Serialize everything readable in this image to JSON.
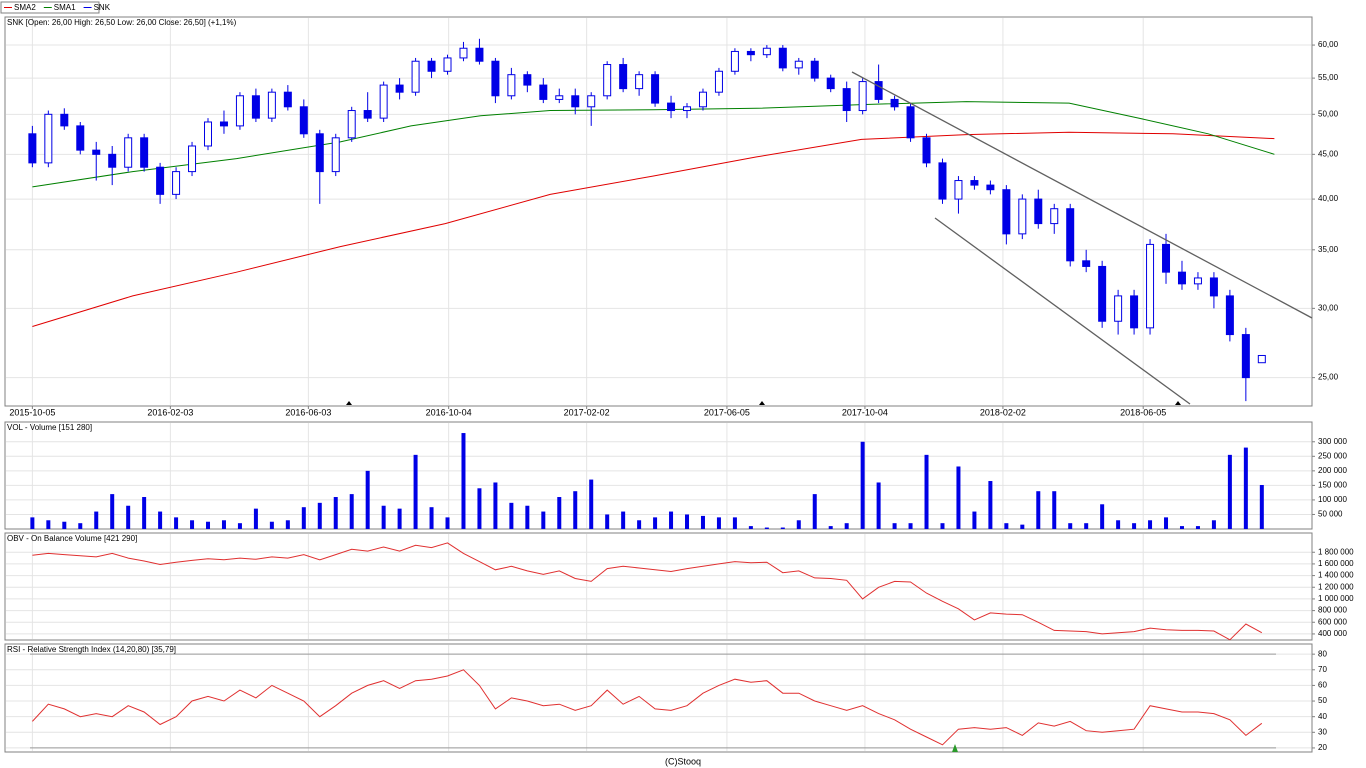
{
  "chart_data": [
    {
      "type": "candlestick",
      "title": "SNK [Open: 26,00  High: 26,50  Low: 26,00  Close: 26,50] (+1,1%)",
      "log_scale": true,
      "grid": true,
      "xlim": [
        "2015-09-11",
        "2018-10-31"
      ],
      "xticks": [
        "2015-10-05",
        "2016-02-03",
        "2016-06-03",
        "2016-10-04",
        "2017-02-02",
        "2017-06-05",
        "2017-10-04",
        "2018-02-02",
        "2018-06-05"
      ],
      "ylim": [
        23.2,
        64.6
      ],
      "yticks": [
        {
          "value": 60,
          "label": "60,00"
        },
        {
          "value": 55,
          "label": "55,00"
        },
        {
          "value": 50,
          "label": "50,00"
        },
        {
          "value": 45,
          "label": "45,00"
        },
        {
          "value": 40,
          "label": "40,00"
        },
        {
          "value": 35,
          "label": "35,00"
        },
        {
          "value": 30,
          "label": "30,00"
        },
        {
          "value": 25,
          "label": "25,00"
        }
      ],
      "x": [
        "2015-10-05",
        "2015-10-19",
        "2015-11-02",
        "2015-11-16",
        "2015-11-30",
        "2015-12-14",
        "2015-12-28",
        "2016-01-11",
        "2016-01-25",
        "2016-02-08",
        "2016-02-22",
        "2016-03-07",
        "2016-03-21",
        "2016-04-04",
        "2016-04-18",
        "2016-05-02",
        "2016-05-16",
        "2016-05-30",
        "2016-06-13",
        "2016-06-27",
        "2016-07-11",
        "2016-07-25",
        "2016-08-08",
        "2016-08-22",
        "2016-09-05",
        "2016-09-19",
        "2016-10-03",
        "2016-10-17",
        "2016-10-31",
        "2016-11-14",
        "2016-11-28",
        "2016-12-12",
        "2016-12-26",
        "2017-01-09",
        "2017-01-23",
        "2017-02-06",
        "2017-02-20",
        "2017-03-06",
        "2017-03-20",
        "2017-04-03",
        "2017-04-17",
        "2017-05-01",
        "2017-05-15",
        "2017-05-29",
        "2017-06-12",
        "2017-06-26",
        "2017-07-10",
        "2017-07-24",
        "2017-08-07",
        "2017-08-21",
        "2017-09-04",
        "2017-09-18",
        "2017-10-02",
        "2017-10-16",
        "2017-10-30",
        "2017-11-13",
        "2017-11-27",
        "2017-12-11",
        "2017-12-25",
        "2018-01-08",
        "2018-01-22",
        "2018-02-05",
        "2018-02-19",
        "2018-03-05",
        "2018-03-19",
        "2018-04-02",
        "2018-04-16",
        "2018-04-30",
        "2018-05-14",
        "2018-05-28",
        "2018-06-11",
        "2018-06-25",
        "2018-07-09",
        "2018-07-23",
        "2018-08-06",
        "2018-08-20",
        "2018-09-03",
        "2018-09-17"
      ],
      "candles": {
        "name": "SNK",
        "color": "#0000e6",
        "open": [
          47.5,
          44,
          50,
          48.5,
          45.5,
          45,
          43.5,
          47,
          43.5,
          40.5,
          43,
          46,
          49,
          48.5,
          52.5,
          49.5,
          53,
          51,
          47.5,
          43,
          47,
          50.5,
          49.5,
          54,
          53,
          57.5,
          56,
          58,
          59.5,
          57.5,
          52.5,
          55.5,
          54,
          52,
          52.5,
          51,
          52.5,
          57,
          53.5,
          55.5,
          51.5,
          50.5,
          51,
          53,
          56,
          59,
          58.5,
          59.5,
          56.5,
          57.5,
          55,
          53.5,
          50.5,
          54.5,
          52,
          51,
          47,
          44,
          40,
          42,
          41.5,
          41,
          36.5,
          40,
          37.5,
          39,
          34,
          33.5,
          29,
          31,
          28.5,
          35.5,
          33,
          32,
          32.5,
          31,
          28,
          26
        ],
        "high": [
          48.5,
          50.5,
          50.8,
          49,
          46.5,
          46,
          47.5,
          47.5,
          44,
          43.5,
          46.5,
          49.5,
          50.5,
          53,
          53.5,
          53.5,
          54,
          52,
          48,
          47.5,
          51,
          53,
          54.5,
          55,
          58,
          58,
          58.5,
          60.5,
          61,
          58,
          56.5,
          56,
          55,
          53.5,
          53.5,
          53,
          57.5,
          58,
          56,
          56,
          52.5,
          51.5,
          53.5,
          56.5,
          59.5,
          59.5,
          60,
          60,
          58,
          58,
          55.5,
          54.5,
          55,
          57,
          52.5,
          51.5,
          47.5,
          44.5,
          42.5,
          42.5,
          42,
          41.5,
          40.5,
          41,
          39.5,
          39.5,
          35,
          34,
          31.5,
          31.5,
          36,
          36.5,
          34,
          33,
          33,
          31.5,
          28.5,
          26.5
        ],
        "low": [
          43.5,
          43.5,
          48,
          45,
          42,
          41.5,
          43,
          43,
          39.5,
          40,
          42.5,
          45.5,
          47.5,
          48,
          49,
          49,
          50.5,
          47,
          39.5,
          42.5,
          46.5,
          49,
          49,
          52,
          52.5,
          55,
          55.5,
          57.5,
          57,
          51.5,
          52,
          53,
          51.5,
          51.5,
          50,
          48.5,
          52,
          53,
          52.5,
          51,
          49.5,
          49.5,
          50.5,
          52.5,
          55.5,
          57.5,
          58,
          56,
          55.5,
          54.5,
          53,
          49,
          50,
          51.5,
          50.5,
          46.5,
          43.5,
          39.5,
          38.5,
          41,
          40.5,
          35.5,
          36,
          37,
          36.5,
          33.5,
          33,
          28.5,
          28,
          28,
          28,
          32,
          31.5,
          31.5,
          30,
          27.5,
          23.5,
          26
        ],
        "close": [
          44,
          50,
          48.5,
          45.5,
          45,
          43.5,
          47,
          43.5,
          40.5,
          43,
          46,
          49,
          48.5,
          52.5,
          49.5,
          53,
          51,
          47.5,
          43,
          47,
          50.5,
          49.5,
          54,
          53,
          57.5,
          56,
          58,
          59.5,
          57.5,
          52.5,
          55.5,
          54,
          52,
          52.5,
          51,
          52.5,
          57,
          53.5,
          55.5,
          51.5,
          50.5,
          51,
          53,
          56,
          59,
          58.5,
          59.5,
          56.5,
          57.5,
          55,
          53.5,
          50.5,
          54.5,
          52,
          51,
          47,
          44,
          40,
          42,
          41.5,
          41,
          36.5,
          40,
          37.5,
          39,
          34,
          33.5,
          29,
          31,
          28.5,
          35.5,
          33,
          32,
          32.5,
          31,
          28,
          25,
          26.5
        ]
      },
      "series": [
        {
          "name": "SMA2",
          "color": "#e00000",
          "x": [
            "2015-10-05",
            "2016-01-01",
            "2016-04-01",
            "2016-07-01",
            "2016-10-01",
            "2017-01-01",
            "2017-04-01",
            "2017-07-01",
            "2017-10-01",
            "2018-01-01",
            "2018-04-01",
            "2018-07-01",
            "2018-09-28"
          ],
          "values": [
            28.6,
            31.0,
            33.0,
            35.3,
            37.5,
            40.5,
            42.5,
            44.7,
            46.8,
            47.4,
            47.7,
            47.5,
            46.9
          ]
        },
        {
          "name": "SMA1",
          "color": "#008000",
          "x": [
            "2015-10-05",
            "2016-01-01",
            "2016-04-01",
            "2016-07-01",
            "2016-09-01",
            "2016-11-01",
            "2017-01-01",
            "2017-04-01",
            "2017-07-01",
            "2017-10-01",
            "2018-01-01",
            "2018-04-01",
            "2018-06-01",
            "2018-08-01",
            "2018-09-28"
          ],
          "values": [
            41.3,
            43.0,
            44.5,
            46.5,
            48.5,
            49.8,
            50.5,
            50.6,
            50.8,
            51.3,
            51.7,
            51.5,
            49.5,
            47.5,
            45.0
          ]
        }
      ]
    },
    {
      "type": "bar",
      "title": "VOL - Volume [151 280]",
      "color": "#0000e6",
      "grid": true,
      "ylim": [
        0,
        368000
      ],
      "yticks": [
        {
          "value": 300000,
          "label": "300 000"
        },
        {
          "value": 250000,
          "label": "250 000"
        },
        {
          "value": 200000,
          "label": "200 000"
        },
        {
          "value": 150000,
          "label": "150 000"
        },
        {
          "value": 100000,
          "label": "100 000"
        },
        {
          "value": 50000,
          "label": "50 000"
        }
      ],
      "values": [
        40000,
        30000,
        25000,
        20000,
        60000,
        120000,
        80000,
        110000,
        60000,
        40000,
        30000,
        25000,
        30000,
        20000,
        70000,
        25000,
        30000,
        75000,
        90000,
        110000,
        120000,
        200000,
        80000,
        70000,
        255000,
        75000,
        40000,
        330000,
        140000,
        160000,
        90000,
        80000,
        60000,
        110000,
        130000,
        170000,
        50000,
        60000,
        30000,
        40000,
        60000,
        50000,
        45000,
        40000,
        40000,
        10000,
        5000,
        5000,
        30000,
        120000,
        10000,
        20000,
        300000,
        160000,
        20000,
        20000,
        255000,
        20000,
        215000,
        60000,
        165000,
        20000,
        15000,
        130000,
        130000,
        20000,
        20000,
        85000,
        30000,
        20000,
        30000,
        40000,
        10000,
        10000,
        30000,
        255000,
        280000,
        151280
      ]
    },
    {
      "type": "line",
      "title": "OBV - On Balance Volume [421 290]",
      "color": "#e03030",
      "grid": true,
      "ylim": [
        296000,
        2130000
      ],
      "yticks": [
        {
          "value": 1800000,
          "label": "1 800 000"
        },
        {
          "value": 1600000,
          "label": "1 600 000"
        },
        {
          "value": 1400000,
          "label": "1 400 000"
        },
        {
          "value": 1200000,
          "label": "1 200 000"
        },
        {
          "value": 1000000,
          "label": "1 000 000"
        },
        {
          "value": 800000,
          "label": "800 000"
        },
        {
          "value": 600000,
          "label": "600 000"
        },
        {
          "value": 400000,
          "label": "400 000"
        }
      ],
      "values": [
        1750000,
        1780000,
        1760000,
        1740000,
        1720000,
        1780000,
        1700000,
        1650000,
        1590000,
        1630000,
        1660000,
        1690000,
        1670000,
        1700000,
        1680000,
        1720000,
        1700000,
        1760000,
        1670000,
        1760000,
        1850000,
        1820000,
        1890000,
        1820000,
        1920000,
        1880000,
        1960000,
        1780000,
        1640000,
        1500000,
        1560000,
        1480000,
        1420000,
        1480000,
        1350000,
        1300000,
        1520000,
        1560000,
        1530000,
        1500000,
        1470000,
        1520000,
        1560000,
        1600000,
        1640000,
        1620000,
        1630000,
        1450000,
        1480000,
        1360000,
        1350000,
        1320000,
        1000000,
        1200000,
        1300000,
        1290000,
        1100000,
        960000,
        830000,
        640000,
        760000,
        740000,
        730000,
        600000,
        460000,
        450000,
        440000,
        400000,
        420000,
        440000,
        500000,
        470000,
        460000,
        460000,
        450000,
        300000,
        570000,
        421290
      ]
    },
    {
      "type": "line",
      "title": "RSI - Relative Strength Index (14,20,80) [35,79]",
      "color": "#e03030",
      "grid": true,
      "ylim": [
        17.4,
        86.5
      ],
      "yticks": [
        80,
        70,
        60,
        50,
        40,
        30,
        20
      ],
      "levels": [
        20,
        80
      ],
      "values": [
        37,
        48,
        45,
        40,
        42,
        40,
        47,
        43,
        35,
        40,
        50,
        53,
        50,
        57,
        52,
        60,
        55,
        50,
        40,
        47,
        55,
        60,
        63,
        58,
        63,
        64,
        66,
        70,
        60,
        45,
        52,
        50,
        47,
        48,
        44,
        47,
        57,
        48,
        53,
        45,
        44,
        47,
        55,
        60,
        64,
        62,
        63,
        55,
        55,
        50,
        47,
        44,
        47,
        42,
        38,
        32,
        27,
        22,
        32,
        33,
        32,
        33,
        28,
        36,
        34,
        37,
        31,
        30,
        31,
        32,
        47,
        45,
        43,
        43,
        42,
        38,
        28,
        35.79
      ]
    }
  ],
  "footer": "(C)Stooq"
}
